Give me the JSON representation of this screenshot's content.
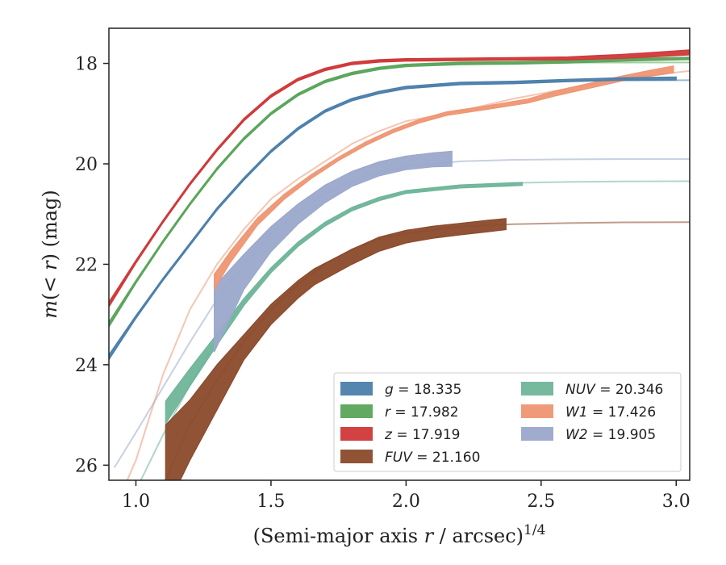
{
  "chart_data": {
    "type": "line",
    "xlabel": "(Semi-major axis r / arcsec)^{1/4}",
    "ylabel": "m(< r) (mag)",
    "xlim": [
      0.9,
      3.05
    ],
    "ylim": [
      26.3,
      17.3
    ],
    "y_inverted": true,
    "xticks": [
      1.0,
      1.5,
      2.0,
      2.5,
      3.0
    ],
    "xtick_labels": [
      "1.0",
      "1.5",
      "2.0",
      "2.5",
      "3.0"
    ],
    "yticks": [
      18,
      20,
      22,
      24,
      26
    ],
    "ytick_labels": [
      "18",
      "20",
      "22",
      "24",
      "26"
    ],
    "grid": false,
    "legend_position": "lower-right",
    "series": [
      {
        "name": "g = 18.335",
        "band": "g",
        "value": "18.335",
        "color": "#4c7fab",
        "model": {
          "x": [
            0.9,
            1.0,
            1.1,
            1.2,
            1.3,
            1.4,
            1.5,
            1.6,
            1.7,
            1.8,
            1.9,
            2.0,
            2.2,
            2.4,
            2.6,
            2.8,
            3.05
          ],
          "y": [
            23.85,
            23.05,
            22.3,
            21.6,
            20.9,
            20.3,
            19.75,
            19.3,
            18.95,
            18.72,
            18.58,
            18.48,
            18.4,
            18.37,
            18.35,
            18.34,
            18.335
          ]
        },
        "data": {
          "x": [
            0.9,
            1.0,
            1.1,
            1.2,
            1.3,
            1.4,
            1.5,
            1.6,
            1.7,
            1.8,
            1.9,
            2.0,
            2.2,
            2.4,
            2.6,
            2.8,
            3.0
          ],
          "y": [
            23.85,
            23.05,
            22.3,
            21.6,
            20.9,
            20.3,
            19.75,
            19.3,
            18.95,
            18.72,
            18.58,
            18.48,
            18.4,
            18.38,
            18.34,
            18.31,
            18.3
          ],
          "width": [
            0.1,
            0.06,
            0.05,
            0.05,
            0.05,
            0.05,
            0.05,
            0.05,
            0.05,
            0.05,
            0.05,
            0.05,
            0.05,
            0.05,
            0.05,
            0.05,
            0.06
          ]
        }
      },
      {
        "name": "r = 17.982",
        "band": "r",
        "value": "17.982",
        "color": "#5aa55a",
        "model": {
          "x": [
            0.9,
            1.0,
            1.1,
            1.2,
            1.3,
            1.4,
            1.5,
            1.6,
            1.7,
            1.8,
            1.9,
            2.0,
            2.2,
            2.4,
            2.6,
            2.8,
            3.05
          ],
          "y": [
            23.2,
            22.35,
            21.55,
            20.8,
            20.1,
            19.5,
            19.0,
            18.62,
            18.36,
            18.2,
            18.1,
            18.04,
            18.0,
            17.99,
            17.985,
            17.983,
            17.982
          ]
        },
        "data": {
          "x": [
            0.9,
            1.0,
            1.1,
            1.2,
            1.3,
            1.4,
            1.5,
            1.6,
            1.7,
            1.8,
            1.9,
            2.0,
            2.2,
            2.4,
            2.6,
            2.8,
            3.05
          ],
          "y": [
            23.2,
            22.35,
            21.55,
            20.8,
            20.1,
            19.5,
            19.0,
            18.62,
            18.36,
            18.2,
            18.1,
            18.04,
            18.0,
            17.99,
            17.97,
            17.93,
            17.9
          ],
          "width": [
            0.1,
            0.06,
            0.05,
            0.05,
            0.05,
            0.05,
            0.05,
            0.05,
            0.05,
            0.05,
            0.05,
            0.05,
            0.05,
            0.05,
            0.05,
            0.05,
            0.05
          ]
        }
      },
      {
        "name": "z = 17.919",
        "band": "z",
        "value": "17.919",
        "color": "#d03838",
        "model": {
          "x": [
            0.9,
            1.0,
            1.1,
            1.2,
            1.3,
            1.4,
            1.5,
            1.6,
            1.7,
            1.8,
            1.9,
            2.0,
            2.2,
            2.4,
            2.6,
            2.8,
            3.05
          ],
          "y": [
            22.8,
            21.95,
            21.15,
            20.4,
            19.72,
            19.12,
            18.65,
            18.32,
            18.12,
            18.0,
            17.95,
            17.93,
            17.925,
            17.92,
            17.92,
            17.919,
            17.919
          ]
        },
        "data": {
          "x": [
            0.9,
            1.0,
            1.1,
            1.2,
            1.3,
            1.4,
            1.5,
            1.6,
            1.7,
            1.8,
            1.9,
            2.0,
            2.2,
            2.4,
            2.6,
            2.7,
            2.8,
            2.9,
            3.05
          ],
          "y": [
            22.8,
            21.95,
            21.15,
            20.4,
            19.72,
            19.12,
            18.65,
            18.32,
            18.12,
            18.0,
            17.95,
            17.93,
            17.92,
            17.91,
            17.9,
            17.88,
            17.86,
            17.83,
            17.78
          ],
          "width": [
            0.1,
            0.06,
            0.05,
            0.05,
            0.05,
            0.05,
            0.05,
            0.05,
            0.05,
            0.05,
            0.05,
            0.05,
            0.05,
            0.05,
            0.06,
            0.07,
            0.08,
            0.09,
            0.1
          ]
        }
      },
      {
        "name": "FUV = 21.160",
        "band": "FUV",
        "value": "21.160",
        "color": "#8b4a2b",
        "model": {
          "x": [
            1.1,
            1.2,
            1.3,
            1.4,
            1.5,
            1.6,
            1.7,
            1.8,
            1.9,
            2.0,
            2.2,
            2.4,
            2.6,
            2.8,
            3.05
          ],
          "y": [
            26.4,
            25.2,
            24.3,
            23.55,
            22.9,
            22.4,
            22.0,
            21.7,
            21.5,
            21.38,
            21.25,
            21.2,
            21.18,
            21.165,
            21.16
          ]
        },
        "data": {
          "x": [
            1.11,
            1.2,
            1.3,
            1.4,
            1.5,
            1.6,
            1.66,
            1.8,
            1.9,
            2.0,
            2.1,
            2.2,
            2.3,
            2.37
          ],
          "y": [
            26.05,
            25.3,
            24.45,
            23.65,
            23.0,
            22.5,
            22.25,
            21.85,
            21.6,
            21.45,
            21.36,
            21.3,
            21.24,
            21.2
          ],
          "width": [
            1.7,
            1.2,
            0.9,
            0.5,
            0.4,
            0.35,
            0.32,
            0.3,
            0.28,
            0.25,
            0.24,
            0.23,
            0.23,
            0.22
          ]
        }
      },
      {
        "name": "NUV = 20.346",
        "band": "NUV",
        "value": "20.346",
        "color": "#6fb59a",
        "model": {
          "x": [
            0.9,
            1.0,
            1.1,
            1.2,
            1.3,
            1.4,
            1.5,
            1.6,
            1.7,
            1.8,
            1.9,
            2.0,
            2.2,
            2.4,
            2.6,
            2.8,
            3.05
          ],
          "y": [
            27.6,
            26.5,
            25.4,
            24.4,
            23.5,
            22.75,
            22.1,
            21.6,
            21.2,
            20.9,
            20.7,
            20.56,
            20.43,
            20.38,
            20.36,
            20.35,
            20.346
          ]
        },
        "data": {
          "x": [
            1.11,
            1.2,
            1.3,
            1.4,
            1.5,
            1.6,
            1.7,
            1.8,
            1.9,
            2.0,
            2.2,
            2.43
          ],
          "y": [
            24.95,
            24.25,
            23.5,
            22.75,
            22.12,
            21.6,
            21.2,
            20.9,
            20.7,
            20.56,
            20.45,
            20.4
          ],
          "width": [
            0.45,
            0.35,
            0.22,
            0.14,
            0.1,
            0.09,
            0.08,
            0.07,
            0.07,
            0.06,
            0.06,
            0.06
          ]
        }
      },
      {
        "name": "W1 = 17.426",
        "band": "W1",
        "value": "17.426",
        "color": "#ee9673",
        "model": {
          "x": [
            0.96,
            1.0,
            1.1,
            1.2,
            1.3,
            1.4,
            1.5,
            1.6,
            1.7,
            1.8,
            1.9,
            2.0,
            2.2,
            2.4,
            2.6,
            2.8,
            3.05
          ],
          "y": [
            26.4,
            25.9,
            24.2,
            22.9,
            22.0,
            21.3,
            20.7,
            20.3,
            19.95,
            19.6,
            19.35,
            19.15,
            18.95,
            18.7,
            18.5,
            18.3,
            18.15
          ]
        },
        "data": {
          "x": [
            1.29,
            1.35,
            1.45,
            1.55,
            1.65,
            1.75,
            1.85,
            1.95,
            2.05,
            2.15,
            2.3,
            2.45,
            2.55,
            2.7,
            2.8,
            2.9,
            2.99
          ],
          "y": [
            22.35,
            21.85,
            21.15,
            20.65,
            20.25,
            19.9,
            19.6,
            19.35,
            19.15,
            19.0,
            18.88,
            18.75,
            18.6,
            18.42,
            18.3,
            18.2,
            18.12
          ],
          "width": [
            0.3,
            0.22,
            0.14,
            0.1,
            0.08,
            0.07,
            0.07,
            0.07,
            0.07,
            0.07,
            0.07,
            0.08,
            0.1,
            0.1,
            0.1,
            0.12,
            0.14
          ]
        }
      },
      {
        "name": "W2 = 19.905",
        "band": "W2",
        "value": "19.905",
        "color": "#9ba8cb",
        "model": {
          "x": [
            0.92,
            1.0,
            1.1,
            1.2,
            1.3,
            1.4,
            1.5,
            1.6,
            1.7,
            1.8,
            1.9,
            2.0,
            2.2,
            2.4,
            2.6,
            2.8,
            3.05
          ],
          "y": [
            26.05,
            25.35,
            24.45,
            23.55,
            22.7,
            22.0,
            21.4,
            20.95,
            20.6,
            20.35,
            20.18,
            20.05,
            19.95,
            19.92,
            19.91,
            19.905,
            19.905
          ]
        },
        "data": {
          "x": [
            1.29,
            1.4,
            1.5,
            1.6,
            1.7,
            1.8,
            1.9,
            2.0,
            2.1,
            2.17
          ],
          "y": [
            23.1,
            22.15,
            21.5,
            21.0,
            20.6,
            20.3,
            20.1,
            19.98,
            19.92,
            19.9
          ],
          "width": [
            1.3,
            0.7,
            0.5,
            0.4,
            0.35,
            0.3,
            0.28,
            0.27,
            0.28,
            0.3
          ]
        }
      }
    ],
    "legend": [
      {
        "band": "g",
        "value": "18.335",
        "color": "#4c7fab"
      },
      {
        "band": "r",
        "value": "17.982",
        "color": "#5aa55a"
      },
      {
        "band": "z",
        "value": "17.919",
        "color": "#d03838"
      },
      {
        "band": "FUV",
        "value": "21.160",
        "color": "#8b4a2b"
      },
      {
        "band": "NUV",
        "value": "20.346",
        "color": "#6fb59a"
      },
      {
        "band": "W1",
        "value": "17.426",
        "color": "#ee9673"
      },
      {
        "band": "W2",
        "value": "19.905",
        "color": "#9ba8cb"
      }
    ]
  }
}
